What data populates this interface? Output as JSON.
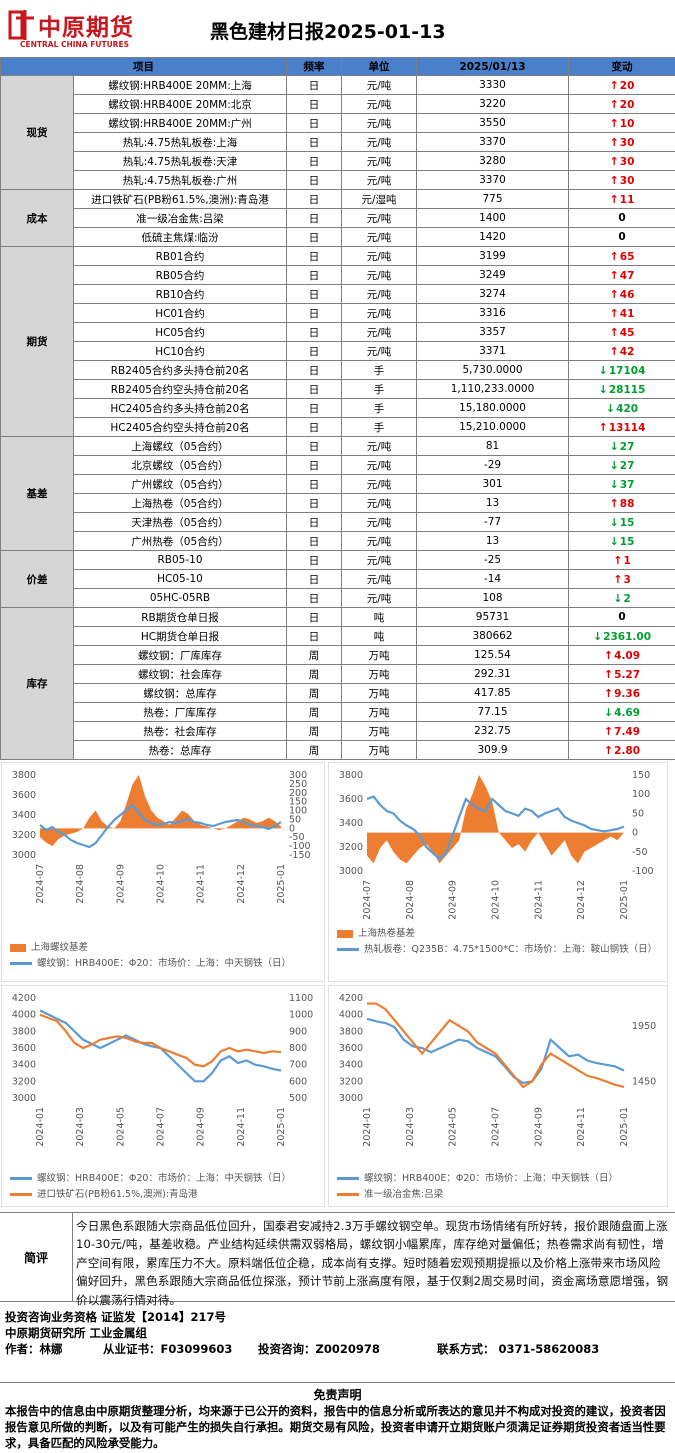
{
  "header": {
    "logo_cn": "中原期货",
    "logo_en": "CENTRAL CHINA FUTURES",
    "title": "黑色建材日报2025-01-13"
  },
  "columns": [
    "项目",
    "频率",
    "单位",
    "2025/01/13",
    "变动"
  ],
  "groups": [
    {
      "name": "现货",
      "rows": [
        {
          "item": "螺纹钢:HRB400E 20MM:上海",
          "freq": "日",
          "unit": "元/吨",
          "value": "3330",
          "dir": "up",
          "change": "20"
        },
        {
          "item": "螺纹钢:HRB400E 20MM:北京",
          "freq": "日",
          "unit": "元/吨",
          "value": "3220",
          "dir": "up",
          "change": "20"
        },
        {
          "item": "螺纹钢:HRB400E 20MM:广州",
          "freq": "日",
          "unit": "元/吨",
          "value": "3550",
          "dir": "up",
          "change": "10"
        },
        {
          "item": "热轧:4.75热轧板卷:上海",
          "freq": "日",
          "unit": "元/吨",
          "value": "3370",
          "dir": "up",
          "change": "30"
        },
        {
          "item": "热轧:4.75热轧板卷:天津",
          "freq": "日",
          "unit": "元/吨",
          "value": "3280",
          "dir": "up",
          "change": "30"
        },
        {
          "item": "热轧:4.75热轧板卷:广州",
          "freq": "日",
          "unit": "元/吨",
          "value": "3370",
          "dir": "up",
          "change": "30"
        }
      ]
    },
    {
      "name": "成本",
      "rows": [
        {
          "item": "进口铁矿石(PB粉61.5%,澳洲):青岛港",
          "freq": "日",
          "unit": "元/湿吨",
          "value": "775",
          "dir": "up",
          "change": "11"
        },
        {
          "item": "准一级冶金焦:吕梁",
          "freq": "日",
          "unit": "元/吨",
          "value": "1400",
          "dir": "zero",
          "change": "0"
        },
        {
          "item": "低硫主焦煤:临汾",
          "freq": "日",
          "unit": "元/吨",
          "value": "1420",
          "dir": "zero",
          "change": "0"
        }
      ]
    },
    {
      "name": "期货",
      "rows": [
        {
          "item": "RB01合约",
          "freq": "日",
          "unit": "元/吨",
          "value": "3199",
          "dir": "up",
          "change": "65"
        },
        {
          "item": "RB05合约",
          "freq": "日",
          "unit": "元/吨",
          "value": "3249",
          "dir": "up",
          "change": "47"
        },
        {
          "item": "RB10合约",
          "freq": "日",
          "unit": "元/吨",
          "value": "3274",
          "dir": "up",
          "change": "46"
        },
        {
          "item": "HC01合约",
          "freq": "日",
          "unit": "元/吨",
          "value": "3316",
          "dir": "up",
          "change": "41"
        },
        {
          "item": "HC05合约",
          "freq": "日",
          "unit": "元/吨",
          "value": "3357",
          "dir": "up",
          "change": "45"
        },
        {
          "item": "HC10合约",
          "freq": "日",
          "unit": "元/吨",
          "value": "3371",
          "dir": "up",
          "change": "42"
        },
        {
          "item": "RB2405合约多头持仓前20名",
          "freq": "日",
          "unit": "手",
          "value": "5,730.0000",
          "dir": "dn",
          "change": "17104"
        },
        {
          "item": "RB2405合约空头持仓前20名",
          "freq": "日",
          "unit": "手",
          "value": "1,110,233.0000",
          "dir": "dn",
          "change": "28115"
        },
        {
          "item": "HC2405合约多头持仓前20名",
          "freq": "日",
          "unit": "手",
          "value": "15,180.0000",
          "dir": "dn",
          "change": "420"
        },
        {
          "item": "HC2405合约空头持仓前20名",
          "freq": "日",
          "unit": "手",
          "value": "15,210.0000",
          "dir": "up",
          "change": "13114"
        }
      ]
    },
    {
      "name": "基差",
      "rows": [
        {
          "item": "上海螺纹（05合约）",
          "freq": "日",
          "unit": "元/吨",
          "value": "81",
          "dir": "dn",
          "change": "27"
        },
        {
          "item": "北京螺纹（05合约）",
          "freq": "日",
          "unit": "元/吨",
          "value": "-29",
          "dir": "dn",
          "change": "27"
        },
        {
          "item": "广州螺纹（05合约）",
          "freq": "日",
          "unit": "元/吨",
          "value": "301",
          "dir": "dn",
          "change": "37"
        },
        {
          "item": "上海热卷（05合约）",
          "freq": "日",
          "unit": "元/吨",
          "value": "13",
          "dir": "up",
          "change": "88"
        },
        {
          "item": "天津热卷（05合约）",
          "freq": "日",
          "unit": "元/吨",
          "value": "-77",
          "dir": "dn",
          "change": "15"
        },
        {
          "item": "广州热卷（05合约）",
          "freq": "日",
          "unit": "元/吨",
          "value": "13",
          "dir": "dn",
          "change": "15"
        }
      ]
    },
    {
      "name": "价差",
      "rows": [
        {
          "item": "RB05-10",
          "freq": "日",
          "unit": "元/吨",
          "value": "-25",
          "dir": "up",
          "change": "1"
        },
        {
          "item": "HC05-10",
          "freq": "日",
          "unit": "元/吨",
          "value": "-14",
          "dir": "up",
          "change": "3"
        },
        {
          "item": "05HC-05RB",
          "freq": "日",
          "unit": "元/吨",
          "value": "108",
          "dir": "dn",
          "change": "2"
        }
      ]
    },
    {
      "name": "库存",
      "rows": [
        {
          "item": "RB期货仓单日报",
          "freq": "日",
          "unit": "吨",
          "value": "95731",
          "dir": "zero",
          "change": "0"
        },
        {
          "item": "HC期货仓单日报",
          "freq": "日",
          "unit": "吨",
          "value": "380662",
          "dir": "dn",
          "change": "2361.00"
        },
        {
          "item": "螺纹钢：厂库库存",
          "freq": "周",
          "unit": "万吨",
          "value": "125.54",
          "dir": "up",
          "change": "4.09"
        },
        {
          "item": "螺纹钢：社会库存",
          "freq": "周",
          "unit": "万吨",
          "value": "292.31",
          "dir": "up",
          "change": "5.27"
        },
        {
          "item": "螺纹钢：总库存",
          "freq": "周",
          "unit": "万吨",
          "value": "417.85",
          "dir": "up",
          "change": "9.36"
        },
        {
          "item": "热卷：厂库库存",
          "freq": "周",
          "unit": "万吨",
          "value": "77.15",
          "dir": "dn",
          "change": "4.69"
        },
        {
          "item": "热卷：社会库存",
          "freq": "周",
          "unit": "万吨",
          "value": "232.75",
          "dir": "up",
          "change": "7.49"
        },
        {
          "item": "热卷：总库存",
          "freq": "周",
          "unit": "万吨",
          "value": "309.9",
          "dir": "up",
          "change": "2.80"
        }
      ]
    }
  ],
  "colors": {
    "line": "#5b9bd5",
    "fill": "#ed7d31",
    "up": "#e00000",
    "dn": "#00a030",
    "header": "#4a7fc9"
  },
  "chart_data": [
    {
      "type": "line",
      "title": "",
      "left_axis": {
        "ticks": [
          "3800",
          "3600",
          "3400",
          "3200",
          "3000"
        ],
        "ylim": [
          3000,
          3800
        ]
      },
      "right_axis": {
        "ticks": [
          "300",
          "250",
          "200",
          "150",
          "100",
          "50",
          "0",
          "-50",
          "-100",
          "-150"
        ],
        "ylim": [
          -150,
          300
        ]
      },
      "x_ticks": [
        "2024-07",
        "2024-08",
        "2024-09",
        "2024-10",
        "2024-11",
        "2024-12",
        "2025-01"
      ],
      "series": [
        {
          "name": "上海螺纹基差",
          "kind": "area",
          "axis": "right",
          "values": [
            -50,
            -80,
            -100,
            -60,
            -40,
            -30,
            -20,
            0,
            60,
            100,
            40,
            10,
            0,
            40,
            140,
            250,
            300,
            180,
            100,
            60,
            40,
            20,
            60,
            100,
            80,
            40,
            20,
            10,
            0,
            -10,
            0,
            20,
            40,
            60,
            50,
            30,
            40,
            60,
            40,
            10
          ]
        },
        {
          "name": "螺纹钢：HRB400E：Φ20：市场价：上海：中天钢铁（日）",
          "kind": "line",
          "axis": "left",
          "values": [
            3300,
            3250,
            3280,
            3230,
            3200,
            3150,
            3120,
            3100,
            3080,
            3120,
            3200,
            3280,
            3350,
            3400,
            3450,
            3500,
            3420,
            3350,
            3320,
            3300,
            3310,
            3330,
            3320,
            3340,
            3360,
            3330,
            3320,
            3300,
            3290,
            3310,
            3330,
            3340,
            3350,
            3330,
            3300,
            3290,
            3280,
            3260,
            3290,
            3330
          ]
        }
      ]
    },
    {
      "type": "line",
      "title": "",
      "left_axis": {
        "ticks": [
          "3800",
          "3600",
          "3400",
          "3200",
          "3000"
        ],
        "ylim": [
          3000,
          3800
        ]
      },
      "right_axis": {
        "ticks": [
          "150",
          "100",
          "50",
          "0",
          "-50",
          "-100"
        ],
        "ylim": [
          -100,
          150
        ]
      },
      "x_ticks": [
        "2024-07",
        "2024-08",
        "2024-09",
        "2024-10",
        "2024-11",
        "2024-12",
        "2025-01"
      ],
      "series": [
        {
          "name": "上海热卷基差",
          "kind": "area",
          "axis": "right",
          "values": [
            -60,
            -80,
            -40,
            -20,
            -50,
            -70,
            -80,
            -60,
            -40,
            -30,
            -50,
            -80,
            -60,
            -40,
            -20,
            60,
            100,
            150,
            120,
            80,
            0,
            -20,
            -40,
            -30,
            -50,
            -20,
            0,
            -30,
            -60,
            -40,
            -20,
            -60,
            -80,
            -50,
            -40,
            -30,
            -20,
            -10,
            -20,
            0
          ]
        },
        {
          "name": "热轧板卷：Q235B：4.75*1500*C：市场价：上海：鞍山钢铁（日）",
          "kind": "line",
          "axis": "left",
          "values": [
            3600,
            3620,
            3550,
            3500,
            3480,
            3420,
            3380,
            3350,
            3300,
            3200,
            3150,
            3100,
            3150,
            3300,
            3450,
            3600,
            3550,
            3520,
            3500,
            3600,
            3550,
            3500,
            3480,
            3460,
            3520,
            3500,
            3450,
            3480,
            3500,
            3520,
            3450,
            3420,
            3400,
            3380,
            3350,
            3340,
            3330,
            3340,
            3350,
            3370
          ]
        }
      ]
    },
    {
      "type": "line",
      "title": "",
      "left_axis": {
        "ticks": [
          "4200",
          "4000",
          "3800",
          "3600",
          "3400",
          "3200",
          "3000"
        ],
        "ylim": [
          3000,
          4200
        ]
      },
      "right_axis": {
        "ticks": [
          "1100",
          "1000",
          "900",
          "800",
          "700",
          "600",
          "500"
        ],
        "ylim": [
          500,
          1100
        ]
      },
      "x_ticks": [
        "2024-01",
        "2024-03",
        "2024-05",
        "2024-07",
        "2024-09",
        "2024-11",
        "2025-01"
      ],
      "series": [
        {
          "name": "螺纹钢：HRB400E：Φ20：市场价：上海：中天钢铁（日）",
          "kind": "line",
          "axis": "left",
          "values": [
            4050,
            4000,
            3950,
            3900,
            3800,
            3700,
            3650,
            3600,
            3650,
            3700,
            3750,
            3700,
            3650,
            3620,
            3600,
            3500,
            3400,
            3300,
            3200,
            3200,
            3300,
            3450,
            3500,
            3420,
            3450,
            3400,
            3380,
            3350,
            3330
          ]
        },
        {
          "name": "进口铁矿石(PB粉61.5%,澳洲):青岛港",
          "kind": "line",
          "axis": "right",
          "values": [
            1000,
            980,
            960,
            900,
            830,
            800,
            820,
            850,
            860,
            870,
            860,
            840,
            830,
            830,
            800,
            780,
            760,
            740,
            700,
            690,
            720,
            780,
            800,
            780,
            790,
            780,
            770,
            780,
            775
          ]
        }
      ]
    },
    {
      "type": "line",
      "title": "",
      "left_axis": {
        "ticks": [
          "4200",
          "4000",
          "3800",
          "3600",
          "3400",
          "3200",
          "3000"
        ],
        "ylim": [
          3000,
          4200
        ]
      },
      "right_axis": {
        "ticks": [
          "1950",
          "1450"
        ],
        "ylim": [
          1300,
          2200
        ]
      },
      "x_ticks": [
        "2024-01",
        "2024-03",
        "2024-05",
        "2024-07",
        "2024-09",
        "2024-11",
        "2025-01"
      ],
      "series": [
        {
          "name": "螺纹钢：HRB400E：Φ20：市场价：上海：中天钢铁（日）",
          "kind": "line",
          "axis": "left",
          "values": [
            3950,
            3920,
            3900,
            3850,
            3700,
            3620,
            3600,
            3550,
            3600,
            3650,
            3700,
            3680,
            3600,
            3550,
            3500,
            3380,
            3250,
            3180,
            3200,
            3350,
            3700,
            3600,
            3500,
            3520,
            3450,
            3420,
            3400,
            3380,
            3330
          ]
        },
        {
          "name": "准一级冶金焦:吕梁",
          "kind": "line",
          "axis": "right",
          "values": [
            2150,
            2150,
            2100,
            2000,
            1900,
            1800,
            1700,
            1800,
            1900,
            2000,
            1950,
            1900,
            1800,
            1750,
            1700,
            1600,
            1500,
            1400,
            1450,
            1600,
            1700,
            1650,
            1600,
            1550,
            1500,
            1480,
            1450,
            1420,
            1400
          ]
        }
      ]
    }
  ],
  "review": {
    "label": "简评",
    "text": "今日黑色系跟随大宗商品低位回升，国泰君安减持2.3万手螺纹钢空单。现货市场情绪有所好转，报价跟随盘面上涨10-30元/吨，基差收稳。产业结构延续供需双弱格局，螺纹钢小幅累库，库存绝对量偏低；热卷需求尚有韧性，增产空间有限，累库压力不大。原料端低位企稳，成本尚有支撑。短时随着宏观预期提振以及价格上涨带来市场风险偏好回升，黑色系跟随大宗商品低位探涨，预计节前上涨高度有限，基于仅剩2周交易时间，资金离场意愿增强，钢价以震荡行情对待。"
  },
  "footer": {
    "qual": "投资咨询业务资格   证监发【2014】217号",
    "inst": "中原期货研究所   工业金属组",
    "author": "作者：林娜",
    "cert": "从业证书：F03099603",
    "advise": "投资咨询：Z0020978",
    "contact": "联系方式： 0371-58620083"
  },
  "disclaimer": {
    "title": "免责声明",
    "text": "本报告中的信息由中原期货整理分析，均来源于已公开的资料，报告中的信息分析或所表达的意见并不构成对投资的建议，投资者因报告意见所做的判断，以及有可能产生的损失自行承担。期货交易有风险，投资者申请开立期货账户须满足证券期货投资者适当性要求，具备匹配的风险承受能力。"
  }
}
